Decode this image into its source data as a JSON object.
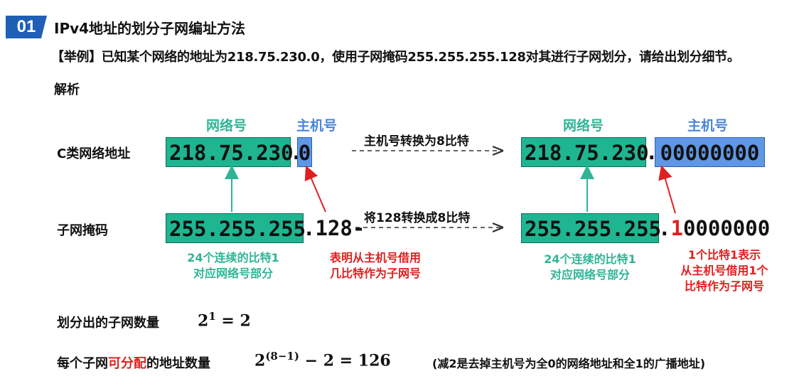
{
  "header": {
    "badge": "01",
    "title": "IPv4地址的划分子网编址方法"
  },
  "example": "【举例】已知某个网络的地址为218.75.230.0，使用子网掩码255.255.255.128对其进行子网划分，请给出划分细节。",
  "analysis_label": "解析",
  "diagram": {
    "labels": {
      "net_header": "网络号",
      "host_header": "主机号"
    },
    "rows": {
      "c_class": "C类网络地址",
      "mask": "子网掩码"
    },
    "left": {
      "addr_net": "218.75.230",
      "addr_dot": ".",
      "addr_host": "0",
      "mask_net": "255.255.255",
      "mask_rest": ".128-"
    },
    "right": {
      "addr_net": "218.75.230",
      "addr_dot": ".",
      "addr_host": "00000000",
      "mask_net": "255.255.255",
      "mask_dot": ".",
      "mask_bit_red": "1",
      "mask_bits_rest": "0000000"
    },
    "conversions": {
      "host_to_8bit": "主机号转换为8比特",
      "mask_to_8bit": "将128转换成8比特"
    },
    "notes": {
      "left_green_1": "24个连续的比特1",
      "left_green_2": "对应网络号部分",
      "left_red_1": "表明从主机号借用",
      "left_red_2": "几比特作为子网号",
      "right_green_1": "24个连续的比特1",
      "right_green_2": "对应网络号部分",
      "right_red_1": "1个比特1表示",
      "right_red_2": "从主机号借用1个",
      "right_red_3": "比特作为子网号"
    }
  },
  "subnet_count": {
    "label": "划分出的子网数量",
    "base": "2",
    "exp": "1",
    "rest": " = 2"
  },
  "addr_count": {
    "label_pre": "每个子网",
    "label_red": "可分配",
    "label_post": "的地址数量",
    "base": "2",
    "exp": "(8−1)",
    "rest": " − 2 = 126",
    "note": "(减2是去掉主机号为全0的网络地址和全1的广播地址)"
  },
  "colors": {
    "green": "#1fb591",
    "blue": "#5f97e6",
    "red": "#e02020",
    "badge": "#1f5fb6"
  }
}
